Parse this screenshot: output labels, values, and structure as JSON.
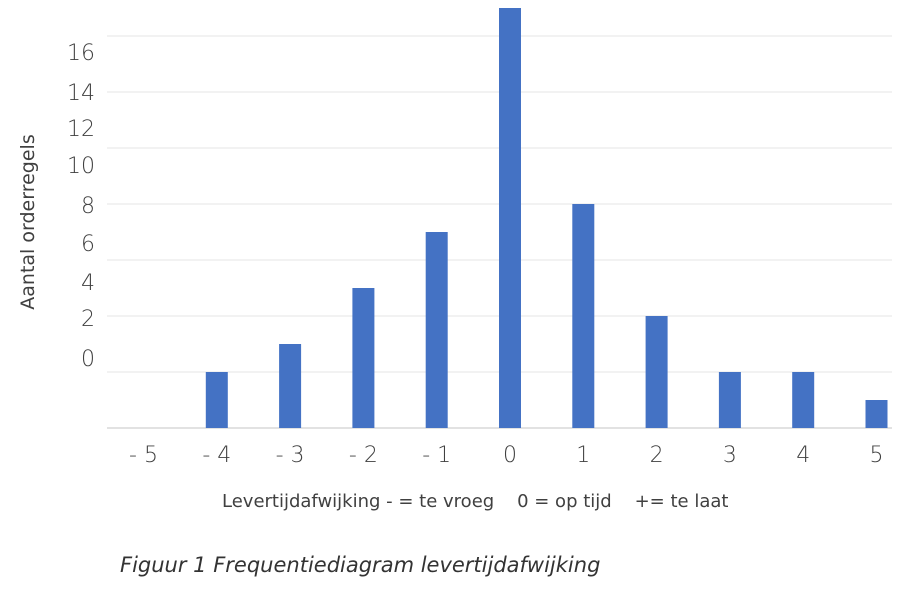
{
  "chart_data": {
    "type": "bar",
    "categories": [
      "- 5",
      "- 4",
      "- 3",
      "- 2",
      "- 1",
      "0",
      "1",
      "2",
      "3",
      "4",
      "5"
    ],
    "values": [
      0,
      2,
      3,
      5,
      7,
      15,
      8,
      4,
      2,
      2,
      1
    ],
    "ylabel": "Aantal orderregels",
    "xlabel": "Levertijdafwijking - = te vroeg    0 = op tijd    += te laat",
    "yticks": [
      "0",
      "2",
      "4",
      "6",
      "8",
      "10",
      "12",
      "14",
      "16"
    ],
    "ylim": [
      0,
      14
    ],
    "grid": true,
    "bar_color": "#4472C4",
    "grid_color": "#EDEDED"
  },
  "caption": "Figuur 1 Frequentiediagram levertijdafwijking"
}
